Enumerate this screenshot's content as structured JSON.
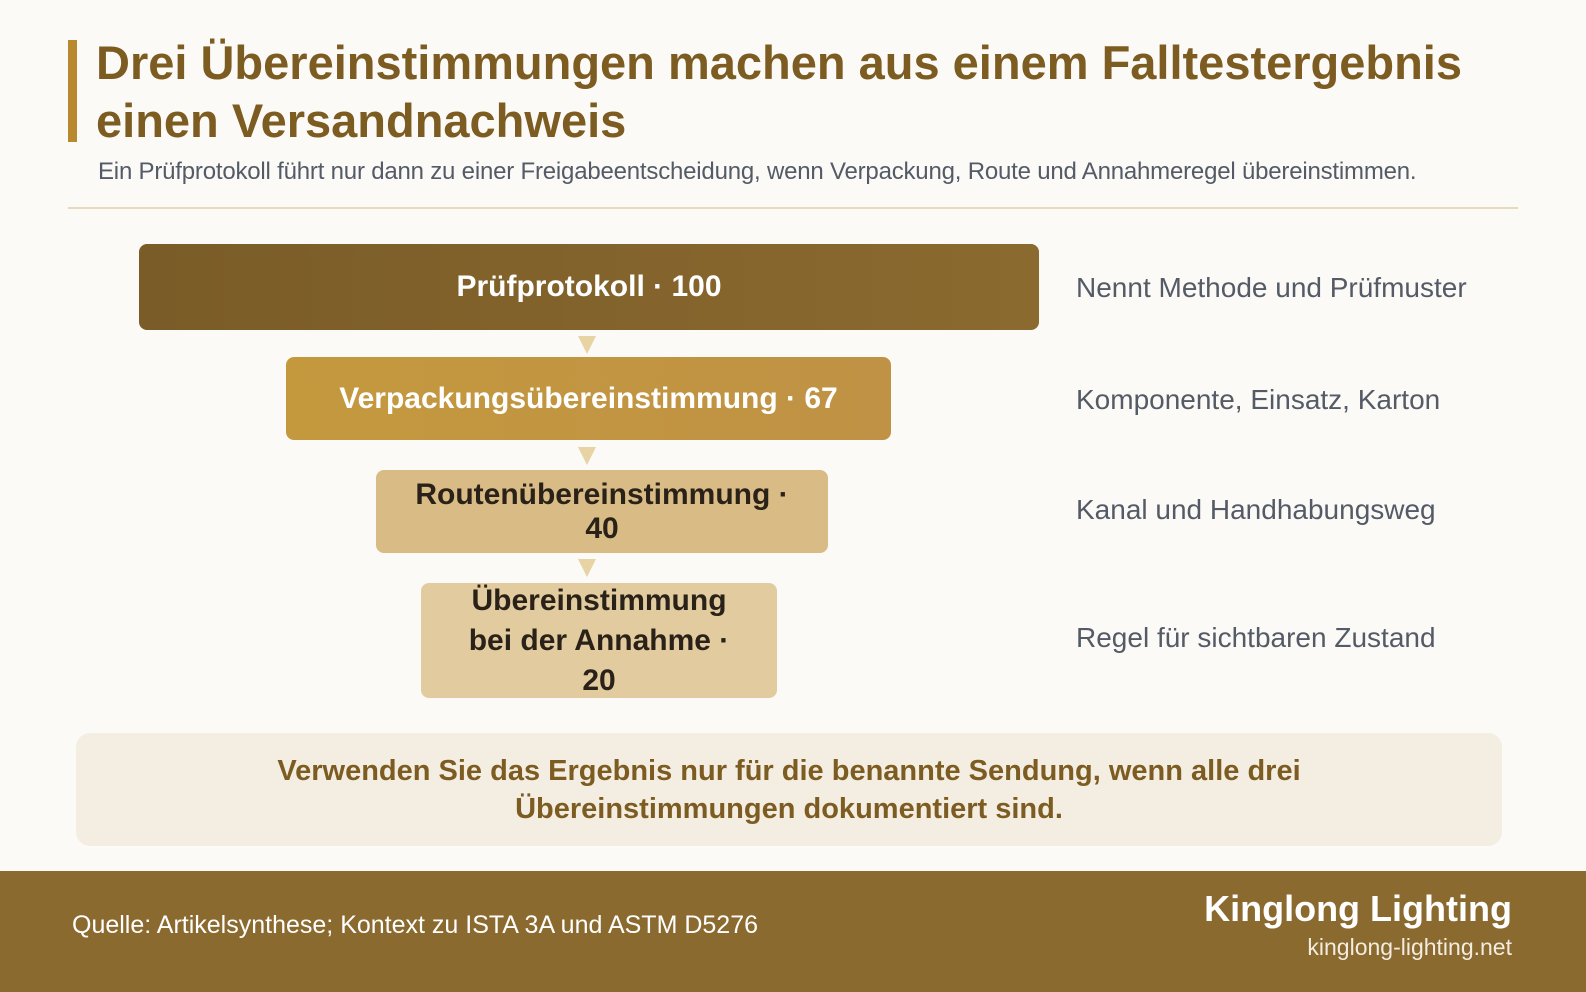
{
  "header": {
    "title": "Drei Übereinstimmungen machen aus einem Falltestergebnis einen Versandnachweis",
    "subtitle": "Ein Prüfprotokoll führt nur dann zu einer Freigabeentscheidung, wenn Verpackung, Route und Annahmeregel übereinstimmen."
  },
  "funnel": {
    "stages": [
      {
        "label": "Prüfprotokoll · 100",
        "value": 100,
        "note": "Nennt Methode und Prüfmuster",
        "color": "#826230"
      },
      {
        "label": "Verpackungsübereinstimmung · 67",
        "value": 67,
        "note": "Komponente, Einsatz, Karton",
        "color": "#c29641"
      },
      {
        "label": "Routenübereinstimmung · 40",
        "value": 40,
        "note": "Kanal und Handhabungsweg",
        "color": "#d8bb85"
      },
      {
        "label": "Übereinstimmung bei der Annahme · 20",
        "value": 20,
        "note": "Regel für sichtbaren Zustand",
        "color": "#e2cc9f"
      }
    ]
  },
  "callout": {
    "text": "Verwenden Sie das Ergebnis nur für die benannte Sendung, wenn alle drei Übereinstimmungen dokumentiert sind."
  },
  "footer": {
    "source": "Quelle: Artikelsynthese; Kontext zu ISTA 3A und ASTM D5276",
    "brand_name": "Kinglong Lighting",
    "brand_url": "kinglong-lighting.net"
  }
}
